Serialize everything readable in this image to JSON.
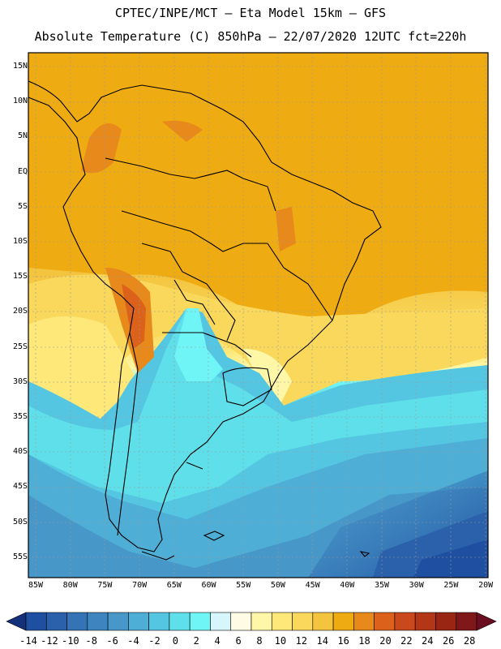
{
  "header": {
    "line1": "CPTEC/INPE/MCT –  Eta Model 15km – GFS",
    "line2": "Absolute Temperature (C) 850hPa – 22/07/2020 12UTC fct=220h"
  },
  "map": {
    "region": "South America",
    "lat_labels": [
      "15N",
      "10N",
      "5N",
      "EQ",
      "5S",
      "10S",
      "15S",
      "20S",
      "25S",
      "30S",
      "35S",
      "40S",
      "45S",
      "50S",
      "55S"
    ],
    "lon_labels": [
      "85W",
      "80W",
      "75W",
      "70W",
      "65W",
      "60W",
      "55W",
      "50W",
      "45W",
      "40W",
      "35W",
      "30W",
      "25W",
      "20W"
    ]
  },
  "colorbar": {
    "ticks": [
      "-14",
      "-12",
      "-10",
      "-8",
      "-6",
      "-4",
      "-2",
      "0",
      "2",
      "4",
      "6",
      "8",
      "10",
      "12",
      "14",
      "16",
      "18",
      "20",
      "22",
      "24",
      "26",
      "28"
    ],
    "colors": [
      "#1f4fa0",
      "#2a61aa",
      "#3473b5",
      "#3e85bf",
      "#4897c9",
      "#4eaed6",
      "#55c6e2",
      "#5fdfe9",
      "#6ff5f5",
      "#d6f6fb",
      "#fffbe4",
      "#fff7a8",
      "#fde879",
      "#f9d85c",
      "#f3c43e",
      "#efab12",
      "#e8891b",
      "#dc621b",
      "#c9481c",
      "#b33717",
      "#982613",
      "#80181a"
    ]
  }
}
